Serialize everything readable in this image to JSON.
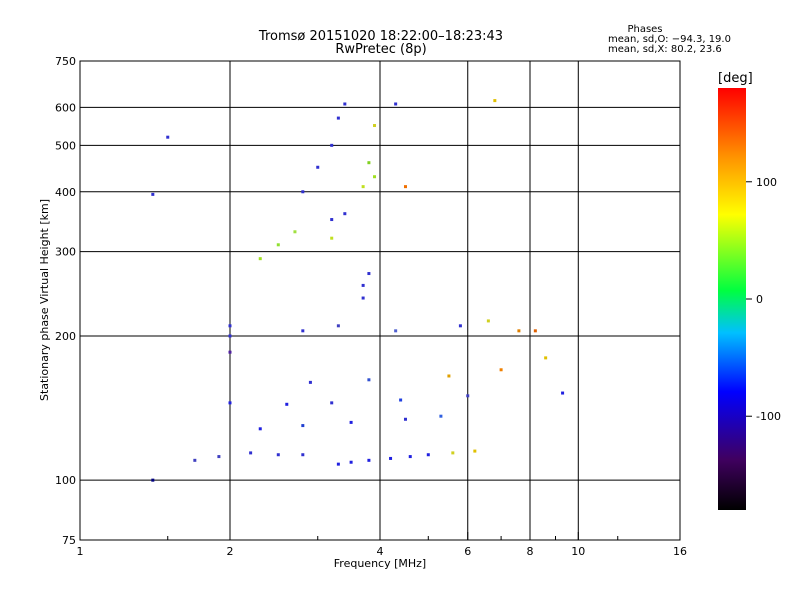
{
  "chart_data": {
    "type": "scatter",
    "title": "Tromsø 20151020 18:22:00–18:23:43",
    "subtitle": "RwPretec (8p)",
    "xlabel": "Frequency [MHz]",
    "ylabel": "Stationary phase Virtual Height [km]",
    "x_scale": "log",
    "y_scale": "log",
    "xlim": [
      1,
      16
    ],
    "ylim": [
      75,
      750
    ],
    "x_ticks": [
      1,
      2,
      4,
      6,
      8,
      10,
      16
    ],
    "x_minor_ticks": [
      1.5,
      3,
      5,
      7,
      9,
      12
    ],
    "y_ticks": [
      75,
      100,
      200,
      300,
      400,
      500,
      600,
      750
    ],
    "grid": true,
    "legend": {
      "title": "Phases",
      "lines": [
        "mean, sd,O: −94.3, 19.0",
        "mean, sd,X: 80.2, 23.6"
      ],
      "placement": "top-right"
    },
    "colorbar": {
      "label": "[deg]",
      "range": [
        -180,
        180
      ],
      "ticks": [
        100,
        0,
        -100
      ],
      "colormap": "rainbow"
    },
    "series": [
      {
        "values": [
          {
            "x": 3.3,
            "y": 108,
            "color": "#2020e0"
          },
          {
            "x": 3.5,
            "y": 109,
            "color": "#2020e0"
          },
          {
            "x": 3.8,
            "y": 110,
            "color": "#2020e0"
          },
          {
            "x": 4.2,
            "y": 111,
            "color": "#2020e0"
          },
          {
            "x": 4.6,
            "y": 112,
            "color": "#2020e0"
          },
          {
            "x": 5.0,
            "y": 113,
            "color": "#2020e0"
          },
          {
            "x": 2.2,
            "y": 114,
            "color": "#3030d0"
          },
          {
            "x": 2.5,
            "y": 113,
            "color": "#3030d0"
          },
          {
            "x": 2.8,
            "y": 113,
            "color": "#3030d0"
          },
          {
            "x": 1.7,
            "y": 110,
            "color": "#4040c0"
          },
          {
            "x": 1.9,
            "y": 112,
            "color": "#4040c0"
          },
          {
            "x": 5.6,
            "y": 114,
            "color": "#d0d020"
          },
          {
            "x": 6.2,
            "y": 115,
            "color": "#e0c000"
          },
          {
            "x": 2.3,
            "y": 128,
            "color": "#2020e0"
          },
          {
            "x": 2.8,
            "y": 130,
            "color": "#2040d0"
          },
          {
            "x": 3.5,
            "y": 132,
            "color": "#2020e0"
          },
          {
            "x": 4.5,
            "y": 134,
            "color": "#3030d0"
          },
          {
            "x": 5.3,
            "y": 136,
            "color": "#3060e0"
          },
          {
            "x": 2.0,
            "y": 145,
            "color": "#2020e0"
          },
          {
            "x": 2.6,
            "y": 144,
            "color": "#2020e0"
          },
          {
            "x": 3.2,
            "y": 145,
            "color": "#3030d0"
          },
          {
            "x": 4.4,
            "y": 147,
            "color": "#2040e0"
          },
          {
            "x": 6.0,
            "y": 150,
            "color": "#4040c0"
          },
          {
            "x": 9.3,
            "y": 152,
            "color": "#2020e0"
          },
          {
            "x": 2.9,
            "y": 160,
            "color": "#3030d0"
          },
          {
            "x": 3.8,
            "y": 162,
            "color": "#3050d0"
          },
          {
            "x": 5.5,
            "y": 165,
            "color": "#e0a000"
          },
          {
            "x": 7.0,
            "y": 170,
            "color": "#f08000"
          },
          {
            "x": 8.6,
            "y": 180,
            "color": "#e0c000"
          },
          {
            "x": 2.0,
            "y": 185,
            "color": "#5020a0"
          },
          {
            "x": 2.0,
            "y": 200,
            "color": "#3030d0"
          },
          {
            "x": 2.0,
            "y": 210,
            "color": "#3030d0"
          },
          {
            "x": 2.8,
            "y": 205,
            "color": "#3030d0"
          },
          {
            "x": 3.3,
            "y": 210,
            "color": "#4040c0"
          },
          {
            "x": 4.3,
            "y": 205,
            "color": "#5060d0"
          },
          {
            "x": 5.8,
            "y": 210,
            "color": "#3030d0"
          },
          {
            "x": 6.6,
            "y": 215,
            "color": "#d0d020"
          },
          {
            "x": 7.6,
            "y": 205,
            "color": "#e08000"
          },
          {
            "x": 8.2,
            "y": 205,
            "color": "#e06000"
          },
          {
            "x": 3.7,
            "y": 240,
            "color": "#3030d0"
          },
          {
            "x": 3.7,
            "y": 255,
            "color": "#3030d0"
          },
          {
            "x": 3.8,
            "y": 270,
            "color": "#3030d0"
          },
          {
            "x": 2.3,
            "y": 290,
            "color": "#a0e020"
          },
          {
            "x": 2.5,
            "y": 310,
            "color": "#90e030"
          },
          {
            "x": 2.7,
            "y": 330,
            "color": "#a0e040"
          },
          {
            "x": 3.2,
            "y": 320,
            "color": "#c0e020"
          },
          {
            "x": 3.2,
            "y": 350,
            "color": "#3030d0"
          },
          {
            "x": 3.4,
            "y": 360,
            "color": "#3030d0"
          },
          {
            "x": 3.7,
            "y": 410,
            "color": "#c0e020"
          },
          {
            "x": 3.9,
            "y": 430,
            "color": "#a0e020"
          },
          {
            "x": 3.8,
            "y": 460,
            "color": "#80d020"
          },
          {
            "x": 4.5,
            "y": 410,
            "color": "#f07000"
          },
          {
            "x": 2.8,
            "y": 400,
            "color": "#3030d0"
          },
          {
            "x": 3.0,
            "y": 450,
            "color": "#3030d0"
          },
          {
            "x": 3.2,
            "y": 500,
            "color": "#3030d0"
          },
          {
            "x": 3.3,
            "y": 570,
            "color": "#3030d0"
          },
          {
            "x": 3.4,
            "y": 610,
            "color": "#3030d0"
          },
          {
            "x": 3.9,
            "y": 550,
            "color": "#d0d020"
          },
          {
            "x": 4.3,
            "y": 610,
            "color": "#3030d0"
          },
          {
            "x": 1.5,
            "y": 520,
            "color": "#3030d0"
          },
          {
            "x": 1.4,
            "y": 395,
            "color": "#3030d0"
          },
          {
            "x": 1.4,
            "y": 100,
            "color": "#000080"
          },
          {
            "x": 6.8,
            "y": 620,
            "color": "#e0c000"
          }
        ]
      }
    ]
  }
}
